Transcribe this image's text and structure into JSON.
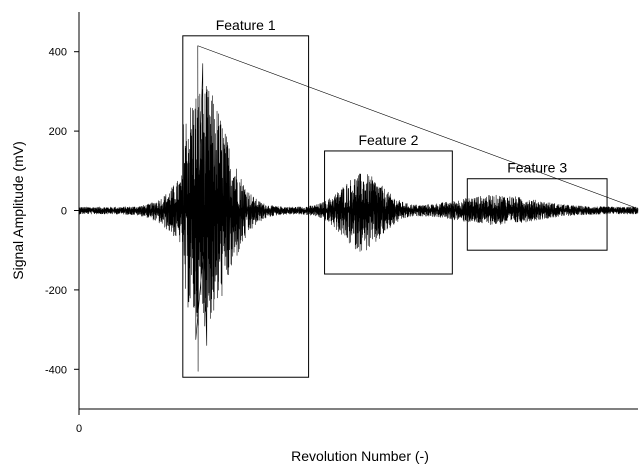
{
  "chart_data": {
    "type": "line",
    "title": "",
    "xlabel": "Revolution Number (-)",
    "ylabel": "Signal Amplitude (mV)",
    "ylim": [
      -500,
      500
    ],
    "xlim": [
      0,
      560
    ],
    "x_ticks": [
      0
    ],
    "x_tick_labels": [
      "0"
    ],
    "y_ticks": [
      400,
      200,
      0,
      -200,
      -400
    ],
    "y_tick_labels": [
      "400",
      "200",
      "0",
      "-200",
      "-400"
    ],
    "grid": false,
    "series": [
      {
        "color": "#000000",
        "description_of_envelope_mV": [
          {
            "x_from": 0,
            "x_to": 95,
            "amplitude": 12
          },
          {
            "x_from": 105,
            "x_to": 135,
            "amplitude_peak_pos": 415,
            "amplitude_peak_neg": -405
          },
          {
            "x_from": 230,
            "x_to": 245,
            "amplitude": 8
          },
          {
            "x_from": 270,
            "x_to": 300,
            "amplitude_peak_pos": 120,
            "amplitude_peak_neg": -130
          },
          {
            "x_from": 400,
            "x_to": 430,
            "amplitude_peak_pos": 45,
            "amplitude_peak_neg": -40
          },
          {
            "x_from": 540,
            "x_to": 560,
            "amplitude": 6
          }
        ]
      }
    ],
    "annotations": [
      {
        "label": "Feature 1",
        "x_range": [
          104,
          230
        ],
        "y_range": [
          -420,
          440
        ]
      },
      {
        "label": "Feature 2",
        "x_range": [
          246,
          374
        ],
        "y_range": [
          -160,
          150
        ]
      },
      {
        "label": "Feature 3",
        "x_range": [
          389,
          529
        ],
        "y_range": [
          -100,
          80
        ]
      }
    ]
  }
}
